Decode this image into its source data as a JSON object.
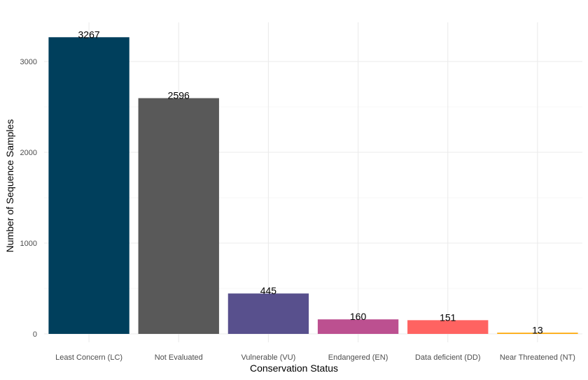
{
  "chart_data": {
    "type": "bar",
    "title": "",
    "xlabel": "Conservation Status",
    "ylabel": "Number of Sequence Samples",
    "categories": [
      "Least Concern (LC)",
      "Not Evaluated",
      "Vulnerable (VU)",
      "Endangered (EN)",
      "Data deficient (DD)",
      "Near Threatened (NT)"
    ],
    "values": [
      3267,
      2596,
      445,
      160,
      151,
      13
    ],
    "colors": [
      "#003f5c",
      "#595959",
      "#58508d",
      "#bc5090",
      "#ff6361",
      "#ffa600"
    ],
    "ylim": [
      0,
      3400
    ],
    "yticks": [
      0,
      1000,
      2000,
      3000
    ],
    "grid": true,
    "legend": "none",
    "data_labels": true
  }
}
